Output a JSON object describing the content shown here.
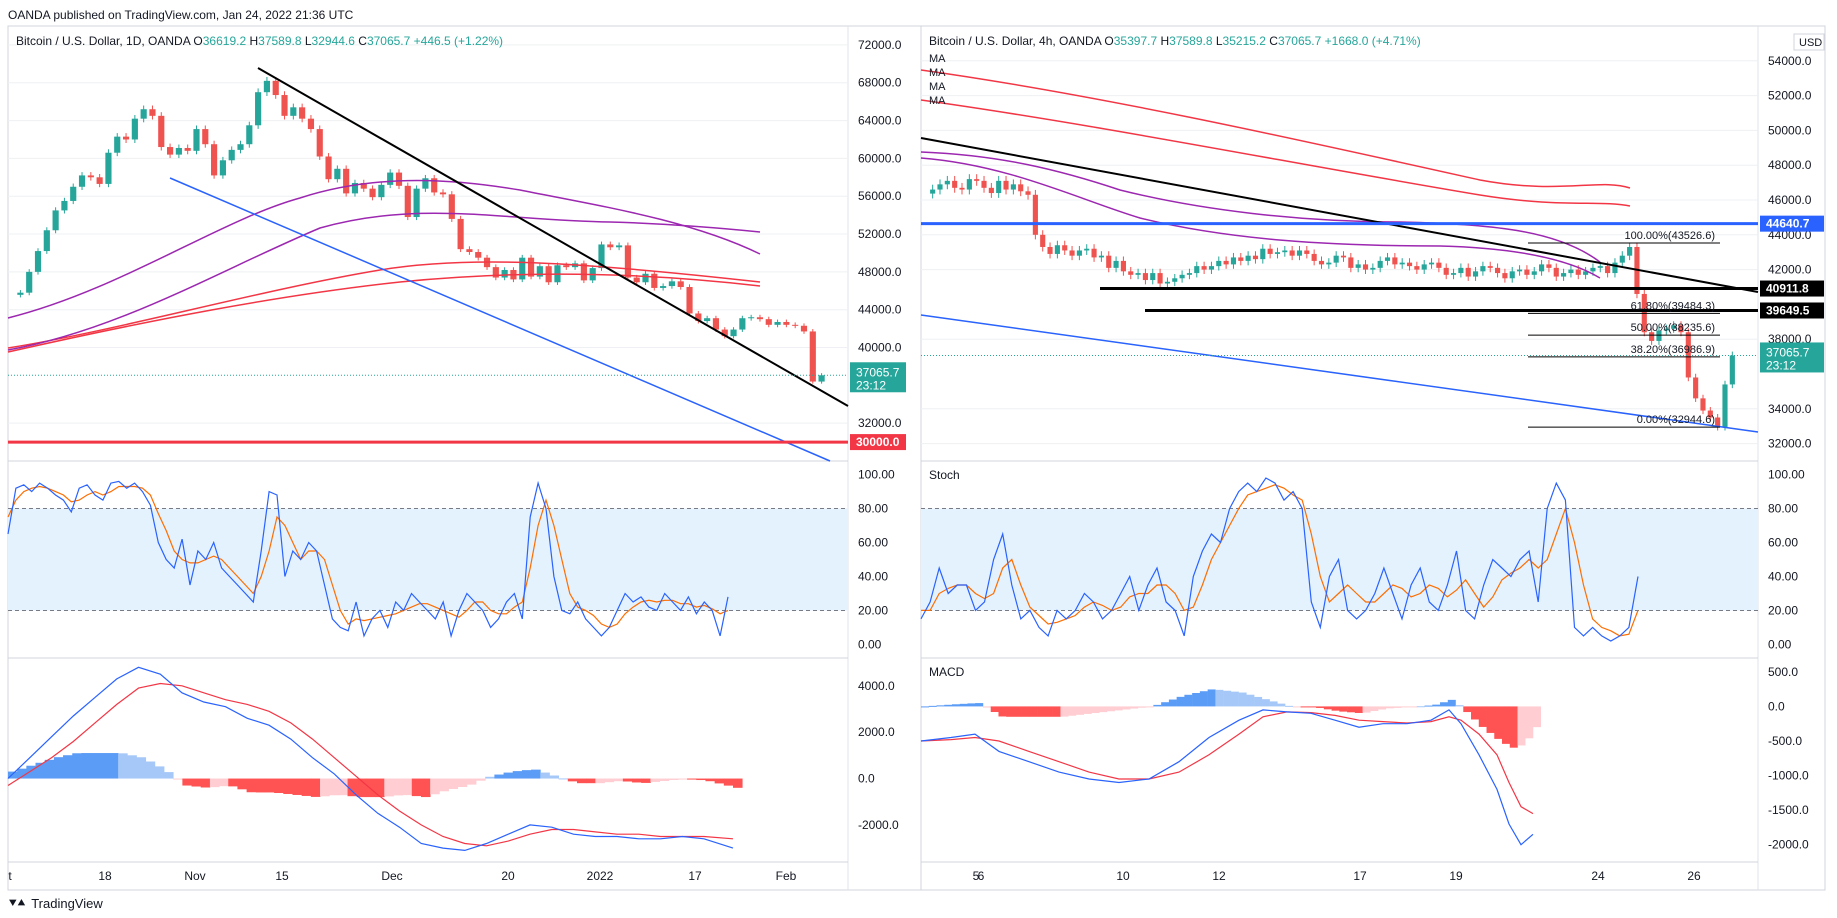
{
  "header": {
    "published": "OANDA published on TradingView.com, Jan 24, 2022 21:36 UTC"
  },
  "footer": {
    "brand": "TradingView",
    "logo": "tradingview-logo-icon"
  },
  "colors": {
    "up": "#26a69a",
    "down": "#ef5350",
    "blue": "#1565c0",
    "line_blue": "#2962ff",
    "orange": "#ff6d00",
    "purple": "#9c27b0",
    "red": "#f23645",
    "grid": "#eef0f3",
    "band": "#e3f2fd"
  },
  "chart_data": [
    {
      "id": "left-price",
      "type": "candlestick",
      "title": "Bitcoin / U.S. Dollar, 1D, OANDA",
      "ohlc": {
        "o_label": "O",
        "o": "36619.2",
        "h_label": "H",
        "h": "37589.8",
        "l_label": "L",
        "l": "32944.6",
        "c_label": "C",
        "c": "37065.7",
        "chg": "+446.5 (+1.22%)"
      },
      "ylim": [
        28000,
        74000
      ],
      "y_ticks": [
        "72000.0",
        "68000.0",
        "64000.0",
        "60000.0",
        "56000.0",
        "52000.0",
        "48000.0",
        "44000.0",
        "40000.0",
        "32000.0"
      ],
      "price_label": "37065.7",
      "countdown": "23:12",
      "level_label": "30000.0",
      "level": 30000,
      "x_ticks": [
        "t",
        "18",
        "Nov",
        "15",
        "Dec",
        "20",
        "2022",
        "17",
        "Feb"
      ],
      "closes": [
        45800,
        48000,
        50200,
        52400,
        54500,
        55500,
        57000,
        58200,
        58000,
        57300,
        60600,
        62300,
        62000,
        64200,
        65200,
        64500,
        61200,
        60400,
        61100,
        60800,
        63100,
        61500,
        58200,
        59800,
        60900,
        61500,
        63500,
        67000,
        68200,
        66700,
        64500,
        65400,
        64200,
        63100,
        60200,
        57800,
        58900,
        56300,
        57400,
        56800,
        55900,
        57200,
        58500,
        57100,
        53800,
        56800,
        57900,
        56400,
        56200,
        53600,
        50400,
        50100,
        49500,
        48500,
        47400,
        48200,
        47200,
        49500,
        47500,
        48600,
        46900,
        48700,
        48500,
        48900,
        47100,
        48400,
        50900,
        50600,
        50800,
        47400,
        46900,
        47800,
        46300,
        46500,
        47000,
        46400,
        43600,
        42800,
        43100,
        41900,
        41200,
        41900,
        43100,
        43200,
        43000,
        42400,
        42700,
        42400,
        42300,
        41700,
        36400,
        37065.7
      ]
    },
    {
      "id": "right-price",
      "type": "candlestick",
      "title": "Bitcoin / U.S. Dollar, 4h, OANDA",
      "ohlc": {
        "o_label": "O",
        "o": "35397.7",
        "h_label": "H",
        "h": "37589.8",
        "l_label": "L",
        "l": "35215.2",
        "c_label": "C",
        "c": "37065.7",
        "chg": "+1668.0 (+4.71%)"
      },
      "ma_labels": [
        "MA",
        "MA",
        "MA",
        "MA"
      ],
      "currency": "USD",
      "ylim": [
        31000,
        56000
      ],
      "y_ticks": [
        "54000.0",
        "52000.0",
        "50000.0",
        "48000.0",
        "46000.0",
        "44000.0",
        "42000.0",
        "38000.0",
        "34000.0",
        "32000.0"
      ],
      "price_label": "37065.7",
      "countdown": "23:12",
      "level_labels": [
        {
          "text": "44640.7",
          "value": 44640.7
        },
        {
          "text": "40911.8",
          "value": 40911.8
        },
        {
          "text": "39649.5",
          "value": 39649.5
        }
      ],
      "fib_levels": [
        {
          "label": "100.00%(43526.6)",
          "value": 43526.6
        },
        {
          "label": "61.80%(39484.3)",
          "value": 39484.3
        },
        {
          "label": "50.00%(38235.6)",
          "value": 38235.6
        },
        {
          "label": "38.20%(36986.9)",
          "value": 36986.9
        },
        {
          "label": "0.00%(32944.6)",
          "value": 32944.6
        }
      ],
      "x_ticks": [
        "5",
        "6",
        "10",
        "12",
        "17",
        "19",
        "24",
        "26"
      ],
      "closes": [
        46600,
        46900,
        47100,
        46700,
        46600,
        47200,
        47100,
        46700,
        46400,
        47100,
        46600,
        46900,
        46500,
        46300,
        44000,
        43300,
        42900,
        43400,
        43100,
        42800,
        43100,
        43200,
        42700,
        42800,
        42100,
        42500,
        41900,
        41700,
        41800,
        41400,
        41800,
        41200,
        41300,
        41500,
        41700,
        41800,
        42200,
        42000,
        42200,
        42500,
        42300,
        42700,
        42500,
        42800,
        42600,
        43200,
        42900,
        43000,
        43100,
        42800,
        43100,
        42900,
        42500,
        42300,
        42400,
        42800,
        42700,
        42100,
        42300,
        42000,
        42100,
        42500,
        42700,
        42300,
        42400,
        42200,
        42000,
        42300,
        42400,
        42100,
        41700,
        41800,
        42100,
        41600,
        41900,
        42200,
        42100,
        41800,
        41500,
        41900,
        42000,
        41700,
        41900,
        42300,
        42100,
        41600,
        41800,
        42000,
        41700,
        41900,
        42100,
        42200,
        41800,
        42400,
        42800,
        43300,
        40600,
        38400,
        37900,
        38500,
        38600,
        38800,
        38400,
        35800,
        34600,
        33900,
        33500,
        32950,
        35400,
        37065.7
      ]
    },
    {
      "id": "left-stoch",
      "type": "line",
      "ylim": [
        -8,
        108
      ],
      "y_ticks": [
        "100.00",
        "80.00",
        "60.00",
        "40.00",
        "20.00",
        "0.00"
      ],
      "band": [
        20,
        80
      ],
      "k": [
        65,
        92,
        94,
        90,
        95,
        92,
        88,
        85,
        78,
        92,
        94,
        88,
        85,
        95,
        96,
        92,
        95,
        90,
        82,
        60,
        50,
        45,
        62,
        35,
        55,
        50,
        60,
        45,
        40,
        35,
        30,
        25,
        55,
        90,
        88,
        40,
        55,
        50,
        60,
        55,
        35,
        15,
        10,
        8,
        25,
        5,
        15,
        20,
        10,
        25,
        20,
        30,
        25,
        20,
        15,
        25,
        5,
        20,
        30,
        25,
        20,
        10,
        15,
        25,
        30,
        15,
        75,
        95,
        80,
        40,
        20,
        18,
        25,
        15,
        10,
        5,
        10,
        20,
        30,
        25,
        28,
        22,
        20,
        30,
        25,
        20,
        28,
        18,
        25,
        20,
        5,
        28
      ],
      "d": [
        75,
        85,
        90,
        92,
        93,
        92,
        90,
        88,
        84,
        85,
        88,
        90,
        88,
        90,
        93,
        93,
        93,
        92,
        88,
        77,
        67,
        55,
        50,
        48,
        48,
        50,
        52,
        50,
        45,
        40,
        35,
        30,
        40,
        55,
        75,
        70,
        60,
        50,
        55,
        55,
        50,
        35,
        20,
        12,
        15,
        14,
        15,
        16,
        17,
        18,
        20,
        22,
        24,
        24,
        22,
        20,
        18,
        16,
        20,
        25,
        25,
        20,
        18,
        18,
        22,
        25,
        45,
        70,
        85,
        70,
        50,
        30,
        22,
        20,
        17,
        12,
        10,
        12,
        18,
        22,
        25,
        26,
        25,
        26,
        26,
        24,
        24,
        22,
        23,
        21,
        18,
        20
      ]
    },
    {
      "id": "left-macd",
      "type": "line+histogram",
      "ylim": [
        -3600,
        5200
      ],
      "y_ticks": [
        "4000.0",
        "2000.0",
        "0.0",
        "-2000.0"
      ],
      "macd_path": [
        [
          0,
          0
        ],
        [
          0.03,
          900
        ],
        [
          0.06,
          1800
        ],
        [
          0.09,
          2700
        ],
        [
          0.12,
          3500
        ],
        [
          0.15,
          4300
        ],
        [
          0.18,
          4800
        ],
        [
          0.21,
          4500
        ],
        [
          0.24,
          3700
        ],
        [
          0.27,
          3300
        ],
        [
          0.3,
          3100
        ],
        [
          0.33,
          2600
        ],
        [
          0.36,
          2300
        ],
        [
          0.39,
          1700
        ],
        [
          0.42,
          900
        ],
        [
          0.45,
          200
        ],
        [
          0.48,
          -700
        ],
        [
          0.51,
          -1500
        ],
        [
          0.54,
          -2100
        ],
        [
          0.57,
          -2800
        ],
        [
          0.6,
          -3000
        ],
        [
          0.63,
          -3100
        ],
        [
          0.66,
          -2800
        ],
        [
          0.69,
          -2400
        ],
        [
          0.72,
          -2000
        ],
        [
          0.75,
          -2100
        ],
        [
          0.78,
          -2400
        ],
        [
          0.81,
          -2500
        ],
        [
          0.84,
          -2500
        ],
        [
          0.87,
          -2600
        ],
        [
          0.9,
          -2600
        ],
        [
          0.93,
          -2500
        ],
        [
          0.96,
          -2600
        ],
        [
          1,
          -3000
        ]
      ],
      "signal_path": [
        [
          0,
          -300
        ],
        [
          0.03,
          300
        ],
        [
          0.06,
          900
        ],
        [
          0.09,
          1600
        ],
        [
          0.12,
          2400
        ],
        [
          0.15,
          3200
        ],
        [
          0.18,
          3900
        ],
        [
          0.21,
          4100
        ],
        [
          0.24,
          4000
        ],
        [
          0.27,
          3700
        ],
        [
          0.3,
          3400
        ],
        [
          0.33,
          3200
        ],
        [
          0.36,
          2900
        ],
        [
          0.39,
          2400
        ],
        [
          0.42,
          1700
        ],
        [
          0.45,
          900
        ],
        [
          0.48,
          100
        ],
        [
          0.51,
          -700
        ],
        [
          0.54,
          -1400
        ],
        [
          0.57,
          -2000
        ],
        [
          0.6,
          -2500
        ],
        [
          0.63,
          -2800
        ],
        [
          0.66,
          -2900
        ],
        [
          0.69,
          -2700
        ],
        [
          0.72,
          -2400
        ],
        [
          0.75,
          -2200
        ],
        [
          0.78,
          -2200
        ],
        [
          0.81,
          -2300
        ],
        [
          0.84,
          -2400
        ],
        [
          0.87,
          -2400
        ],
        [
          0.9,
          -2500
        ],
        [
          0.93,
          -2500
        ],
        [
          0.96,
          -2500
        ],
        [
          1,
          -2600
        ]
      ]
    },
    {
      "id": "right-stoch",
      "type": "line",
      "label": "Stoch",
      "ylim": [
        -8,
        108
      ],
      "y_ticks": [
        "100.00",
        "80.00",
        "60.00",
        "40.00",
        "20.00",
        "0.00"
      ],
      "band": [
        20,
        80
      ],
      "k": [
        15,
        25,
        45,
        30,
        35,
        35,
        20,
        25,
        50,
        65,
        35,
        15,
        20,
        10,
        5,
        20,
        15,
        20,
        30,
        25,
        15,
        20,
        30,
        40,
        20,
        35,
        45,
        25,
        20,
        5,
        40,
        55,
        65,
        60,
        80,
        90,
        95,
        90,
        98,
        95,
        85,
        90,
        80,
        25,
        10,
        40,
        50,
        20,
        15,
        20,
        30,
        45,
        30,
        15,
        35,
        45,
        25,
        20,
        35,
        55,
        20,
        15,
        35,
        50,
        45,
        40,
        50,
        55,
        25,
        80,
        95,
        85,
        10,
        5,
        10,
        5,
        2,
        5,
        10,
        40
      ],
      "d": [
        20,
        20,
        30,
        33,
        35,
        35,
        30,
        27,
        30,
        45,
        50,
        35,
        22,
        17,
        12,
        13,
        15,
        17,
        22,
        25,
        23,
        20,
        22,
        28,
        30,
        30,
        35,
        35,
        30,
        20,
        22,
        35,
        50,
        60,
        70,
        80,
        88,
        90,
        92,
        94,
        92,
        88,
        85,
        65,
        40,
        25,
        30,
        35,
        30,
        25,
        25,
        30,
        35,
        33,
        28,
        30,
        35,
        33,
        28,
        32,
        38,
        30,
        22,
        28,
        38,
        42,
        45,
        50,
        45,
        50,
        65,
        80,
        60,
        35,
        15,
        10,
        8,
        5,
        6,
        20
      ]
    },
    {
      "id": "right-macd",
      "type": "line+histogram",
      "label": "MACD",
      "ylim": [
        -2250,
        700
      ],
      "y_ticks": [
        "500.0",
        "0.0",
        "-500.0",
        "-1000.0",
        "-1500.0",
        "-2000.0"
      ],
      "macd_path": [
        [
          0,
          -500
        ],
        [
          0.05,
          -450
        ],
        [
          0.09,
          -400
        ],
        [
          0.13,
          -650
        ],
        [
          0.18,
          -800
        ],
        [
          0.23,
          -950
        ],
        [
          0.28,
          -1050
        ],
        [
          0.33,
          -1100
        ],
        [
          0.38,
          -1050
        ],
        [
          0.43,
          -800
        ],
        [
          0.48,
          -450
        ],
        [
          0.53,
          -200
        ],
        [
          0.57,
          -50
        ],
        [
          0.61,
          -80
        ],
        [
          0.65,
          -100
        ],
        [
          0.69,
          -200
        ],
        [
          0.73,
          -300
        ],
        [
          0.77,
          -250
        ],
        [
          0.81,
          -250
        ],
        [
          0.85,
          -200
        ],
        [
          0.88,
          -50
        ],
        [
          0.9,
          -250
        ],
        [
          0.93,
          -700
        ],
        [
          0.96,
          -1200
        ],
        [
          0.98,
          -1700
        ],
        [
          1,
          -2000
        ],
        [
          1.02,
          -1850
        ]
      ],
      "signal_path": [
        [
          0,
          -500
        ],
        [
          0.05,
          -480
        ],
        [
          0.09,
          -450
        ],
        [
          0.13,
          -500
        ],
        [
          0.18,
          -650
        ],
        [
          0.23,
          -800
        ],
        [
          0.28,
          -950
        ],
        [
          0.33,
          -1050
        ],
        [
          0.38,
          -1050
        ],
        [
          0.43,
          -950
        ],
        [
          0.48,
          -700
        ],
        [
          0.53,
          -400
        ],
        [
          0.57,
          -150
        ],
        [
          0.61,
          -80
        ],
        [
          0.65,
          -90
        ],
        [
          0.69,
          -130
        ],
        [
          0.73,
          -200
        ],
        [
          0.77,
          -220
        ],
        [
          0.81,
          -240
        ],
        [
          0.85,
          -220
        ],
        [
          0.88,
          -150
        ],
        [
          0.9,
          -200
        ],
        [
          0.93,
          -400
        ],
        [
          0.96,
          -700
        ],
        [
          0.98,
          -1100
        ],
        [
          1,
          -1450
        ],
        [
          1.02,
          -1550
        ]
      ]
    }
  ]
}
